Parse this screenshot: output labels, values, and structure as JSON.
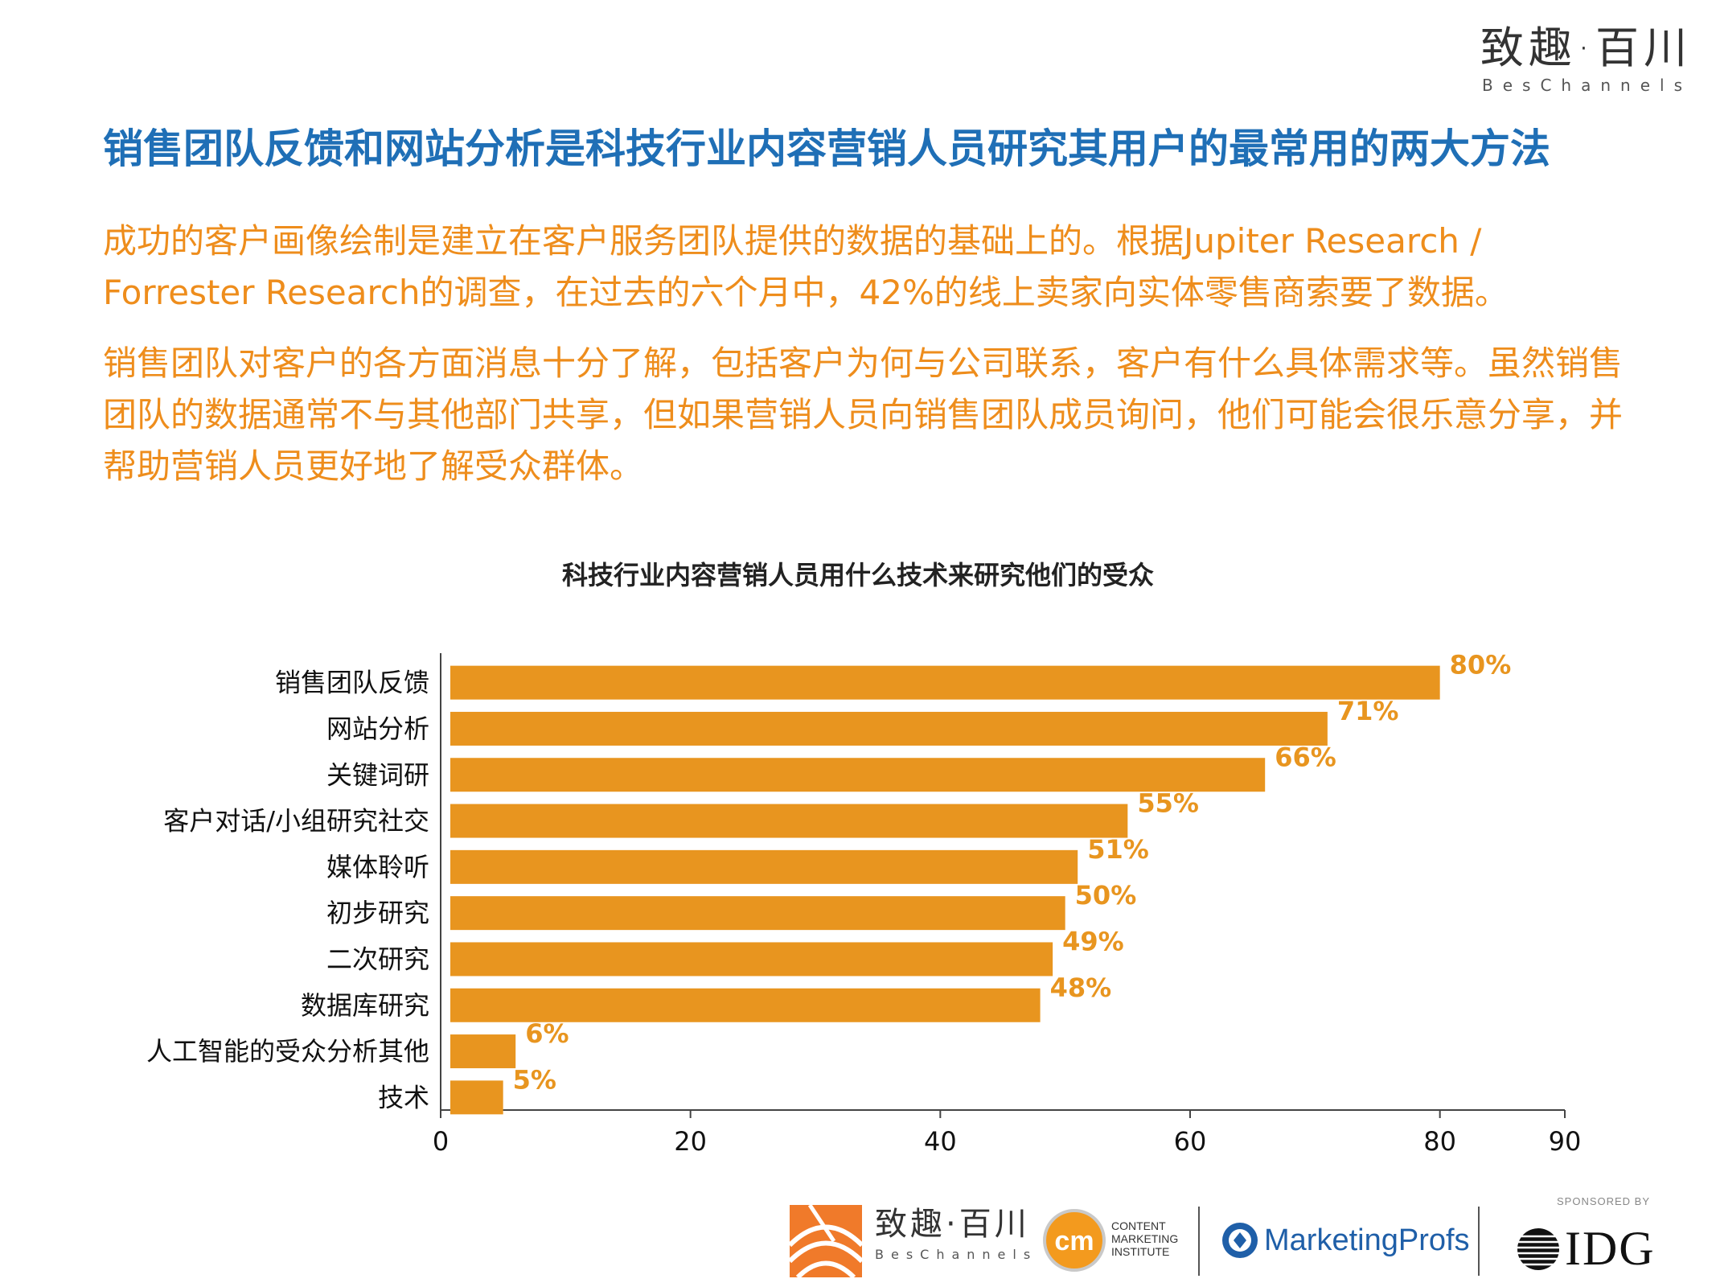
{
  "brand": {
    "name_cn": "致趣·百川",
    "name_en": "BesChannels"
  },
  "headline": "销售团队反馈和网站分析是科技行业内容营销人员研究其用户的最常用的两大方法",
  "paragraphs": {
    "p1": "成功的客户画像绘制是建立在客户服务团队提供的数据的基础上的。根据Jupiter Research / Forrester Research的调查，在过去的六个月中，42%的线上卖家向实体零售商索要了数据。",
    "p2": "销售团队对客户的各方面消息十分了解，包括客户为何与公司联系，客户有什么具体需求等。虽然销售团队的数据通常不与其他部门共享，但如果营销人员向销售团队成员询问，他们可能会很乐意分享，并帮助营销人员更好地了解受众群体。"
  },
  "chart_data": {
    "type": "bar",
    "orientation": "horizontal",
    "title": "科技行业内容营销人员用什么技术来研究他们的受众",
    "categories": [
      "销售团队反馈",
      "网站分析",
      "关键词研",
      "客户对话/小组研究社交",
      "媒体聆听",
      "初步研究",
      "二次研究",
      "数据库研究",
      "人工智能的受众分析其他",
      "技术"
    ],
    "values": [
      80,
      71,
      66,
      55,
      51,
      50,
      49,
      48,
      6,
      5
    ],
    "value_labels": [
      "80%",
      "71%",
      "66%",
      "55%",
      "51%",
      "50%",
      "49%",
      "48%",
      "6%",
      "5%"
    ],
    "xlim": [
      0,
      90
    ],
    "xticks": [
      0,
      20,
      40,
      60,
      80,
      90
    ],
    "xlabel": "",
    "ylabel": "",
    "bar_color": "#e8951f",
    "label_color": "#e8951f"
  },
  "footer": {
    "bes_cn": "致趣·百川",
    "bes_en": "BesChannels",
    "cmi_mark": "cm",
    "cmi_lines": [
      "CONTENT",
      "MARKETING",
      "INSTITUTE"
    ],
    "marketingprofs": "MarketingProfs",
    "sponsored_by": "SPONSORED BY",
    "idg": "IDG"
  },
  "colors": {
    "headline": "#1f6fb6",
    "accent": "#ee8d1c"
  }
}
